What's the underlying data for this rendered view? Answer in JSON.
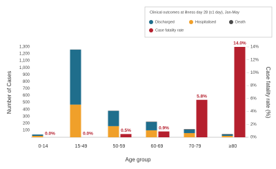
{
  "chart_data": {
    "type": "bar",
    "legend_title": "Clinical outcomes at illness day 28 (±1 day), Jan-May",
    "categories": [
      "0-14",
      "15-49",
      "50-59",
      "60-69",
      "70-79",
      "≥80"
    ],
    "series": [
      {
        "name": "Discharged",
        "color": "#1f6e8c",
        "values": [
          20,
          790,
          220,
          120,
          50,
          20
        ]
      },
      {
        "name": "Hospitalised",
        "color": "#f0a02a",
        "values": [
          20,
          470,
          160,
          100,
          60,
          20
        ]
      },
      {
        "name": "Death",
        "color": "#4a4a4a",
        "values": [
          0,
          2,
          3,
          5,
          7,
          6
        ]
      },
      {
        "name": "Case fatality rate",
        "color": "#b5202e",
        "axis": "y2",
        "values": [
          0.0,
          0.0,
          0.5,
          0.9,
          5.8,
          14.0
        ],
        "value_labels": [
          "0.0%",
          "0.0%",
          "0.5%",
          "0.9%",
          "5.8%",
          "14.0%"
        ]
      }
    ],
    "stack_order": [
      "Hospitalised",
      "Discharged",
      "Death"
    ],
    "x_label": "Age group",
    "y_label": "Number of Cases",
    "y2_label": "Case fatality rate (%)",
    "ylim": [
      0,
      1300
    ],
    "yticks": [
      100,
      200,
      300,
      400,
      500,
      600,
      700,
      800,
      900,
      {
        "value": 1000,
        "label": "1,000"
      },
      {
        "value": 1100,
        "label": "1,100"
      },
      {
        "value": 1200,
        "label": "1,200"
      },
      {
        "value": 1300,
        "label": "1,300"
      }
    ],
    "y2lim": [
      0,
      14
    ],
    "y2ticks": [
      {
        "value": 0,
        "label": "0%"
      },
      {
        "value": 2,
        "label": "2%"
      },
      {
        "value": 4,
        "label": "4%"
      },
      {
        "value": 6,
        "label": "6%"
      },
      {
        "value": 8,
        "label": "8%"
      },
      {
        "value": 10,
        "label": "10%"
      },
      {
        "value": 12,
        "label": "12%"
      },
      {
        "value": 14,
        "label": "14%"
      }
    ],
    "grid": false
  }
}
